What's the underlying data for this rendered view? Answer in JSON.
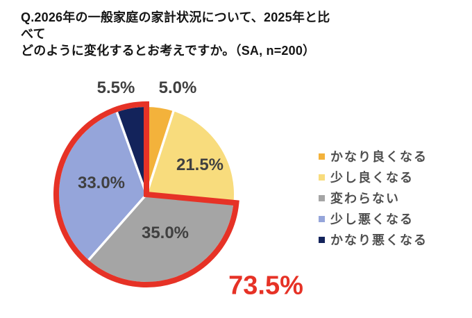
{
  "title": {
    "line1": "Q.2026年の一般家庭の家計状況について、2025年と比べて",
    "line2": "どのように変化するとお考えですか。（SA, n=200）"
  },
  "chart_data": {
    "type": "pie",
    "title": "Q.2026年の一般家庭の家計状況について、2025年と比べてどのように変化するとお考えですか。",
    "survey_note": "SA, n=200",
    "sample_size": 200,
    "categories": [
      "かなり良くなる",
      "少し良くなる",
      "変わらない",
      "少し悪くなる",
      "かなり悪くなる"
    ],
    "values": [
      5.0,
      21.5,
      35.0,
      33.0,
      5.5
    ],
    "labels": [
      "5.0%",
      "21.5%",
      "35.0%",
      "33.0%",
      "5.5%"
    ],
    "colors": [
      "#F3B23B",
      "#F8DC7D",
      "#A5A5A5",
      "#95A5DA",
      "#13235B"
    ],
    "start_angle": "top",
    "direction": "clockwise",
    "legend_position": "right",
    "highlight": {
      "label": "73.5%",
      "value": 73.5,
      "segment_indices": [
        2,
        3,
        4
      ],
      "categories": [
        "変わらない",
        "少し悪くなる",
        "かなり悪くなる"
      ],
      "color": "#E63226"
    }
  }
}
